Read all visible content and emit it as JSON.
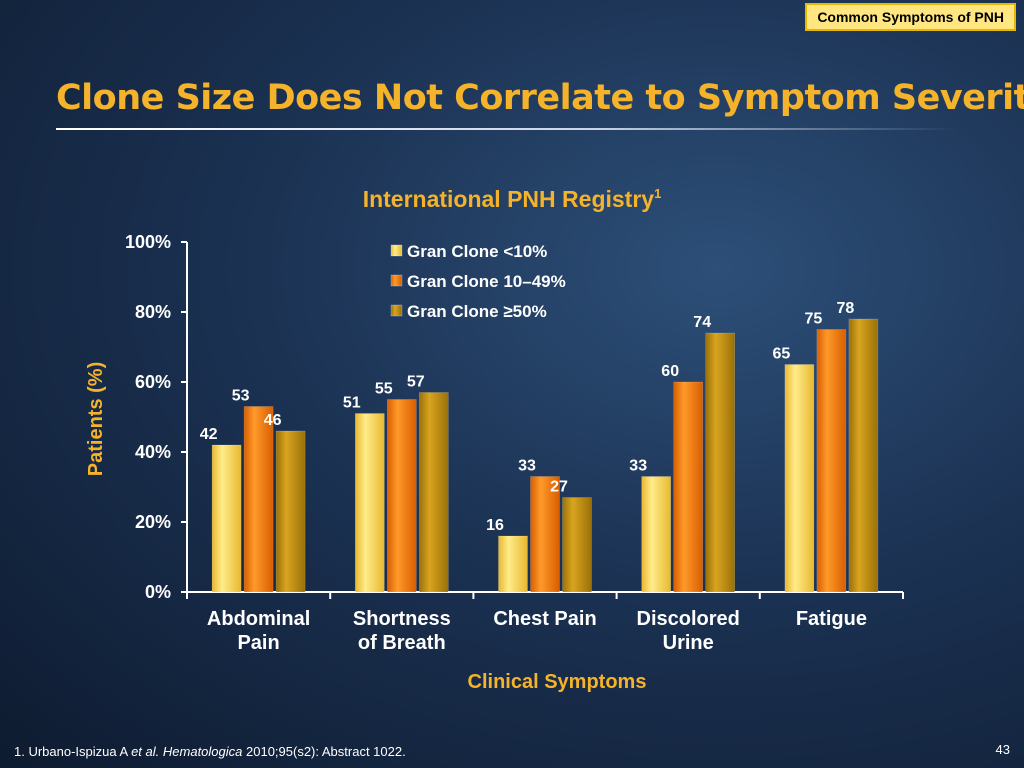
{
  "header": {
    "tag": "Common Symptoms of PNH",
    "title": "Clone Size Does Not Correlate to Symptom Severity"
  },
  "chart_data": {
    "type": "bar",
    "title": "International PNH Registry",
    "title_sup": "1",
    "ylabel": "Patients (%)",
    "xlabel": "Clinical Symptoms",
    "ylim": [
      0,
      100
    ],
    "yticks": [
      "0%",
      "20%",
      "40%",
      "60%",
      "80%",
      "100%"
    ],
    "categories": [
      [
        "Abdominal",
        "Pain"
      ],
      [
        "Shortness",
        "of Breath"
      ],
      [
        "Chest Pain"
      ],
      [
        "Discolored",
        "Urine"
      ],
      [
        "Fatigue"
      ]
    ],
    "series": [
      {
        "name": "Gran Clone <10%",
        "color": "#ffd955",
        "values": [
          42,
          51,
          16,
          33,
          65
        ]
      },
      {
        "name": "Gran Clone 10–49%",
        "color": "#f47a0c",
        "values": [
          53,
          55,
          33,
          60,
          75
        ]
      },
      {
        "name": "Gran Clone ≥50%",
        "color": "#c79310",
        "values": [
          46,
          57,
          27,
          74,
          78
        ]
      }
    ],
    "legend_position": "top-center",
    "grid": false
  },
  "footer": {
    "ref_prefix": "1. Urbano-Ispizua A ",
    "ref_etal": "et al.",
    "ref_journal": "Hematologica",
    "ref_suffix": " 2010;95(s2): Abstract 1022.",
    "page": "43"
  }
}
